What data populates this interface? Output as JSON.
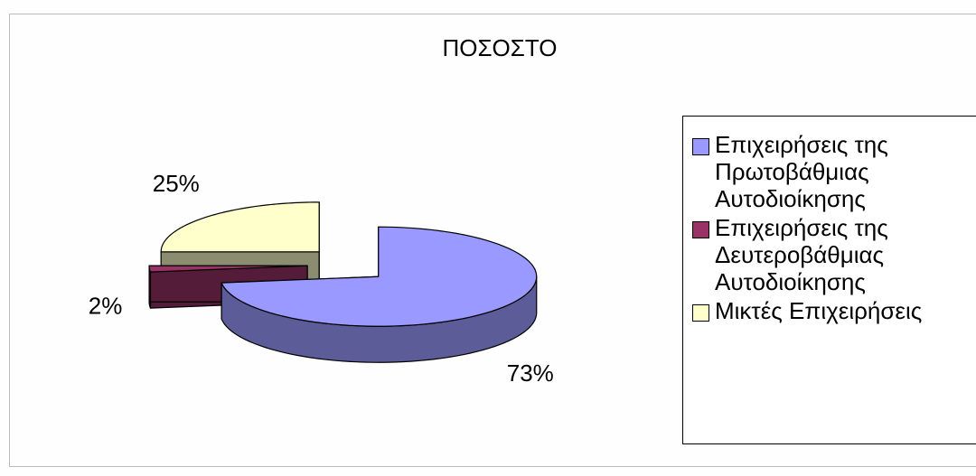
{
  "chart_data": {
    "type": "pie3d",
    "title": "ΠΟΣΟΣΤΟ",
    "categories": [
      "Επιχειρήσεις της Πρωτοβάθμιας Αυτοδιοίκησης",
      "Επιχειρήσεις της Δευτεροβάθμιας Αυτοδιοίκησης",
      "Μικτές Επιχειρήσεις"
    ],
    "values": [
      73,
      2,
      25
    ],
    "value_labels": [
      "73%",
      "2%",
      "25%"
    ],
    "colors": [
      "#9999ff",
      "#993366",
      "#ffffcc"
    ],
    "legend": "right"
  }
}
